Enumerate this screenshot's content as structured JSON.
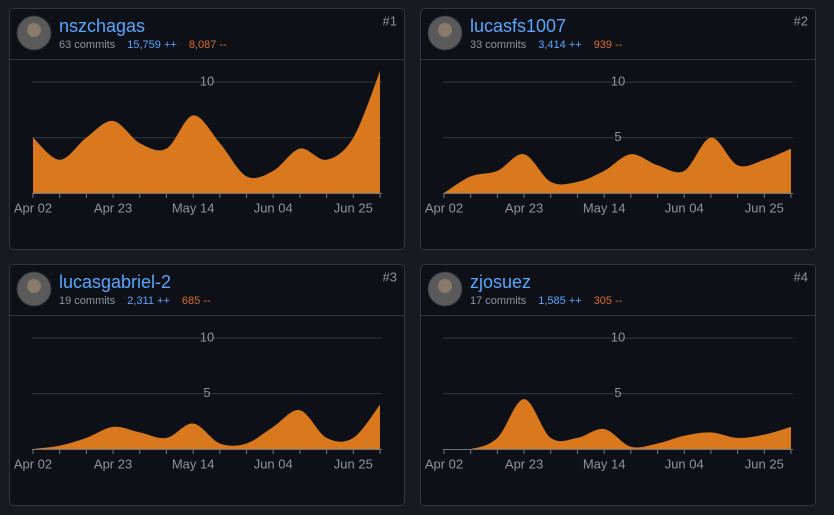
{
  "contributors": [
    {
      "name": "nszchagas",
      "rank": "#1",
      "commits": "63 commits",
      "additions": "15,759 ++",
      "deletions": "8,087 --",
      "chart": {
        "type": "area",
        "color": "#d9781c",
        "x": [
          "Apr 02",
          null,
          null,
          "Apr 23",
          null,
          null,
          "May 14",
          null,
          null,
          "Jun 04",
          null,
          null,
          "Jun 25",
          null
        ],
        "values": [
          5,
          3,
          5,
          6.5,
          4.5,
          4,
          7,
          4.5,
          1.5,
          2,
          4,
          3,
          5,
          11
        ],
        "ylim": [
          0,
          12
        ],
        "yticks": [
          5,
          10
        ],
        "grid": true
      }
    },
    {
      "name": "lucasfs1007",
      "rank": "#2",
      "commits": "33 commits",
      "additions": "3,414 ++",
      "deletions": "939 --",
      "chart": {
        "type": "area",
        "color": "#d9781c",
        "x": [
          "Apr 02",
          null,
          null,
          "Apr 23",
          null,
          null,
          "May 14",
          null,
          null,
          "Jun 04",
          null,
          null,
          "Jun 25",
          null
        ],
        "values": [
          0,
          1.5,
          2,
          3.5,
          1,
          1,
          2,
          3.5,
          2.5,
          2,
          5,
          2.5,
          3,
          4
        ],
        "ylim": [
          0,
          12
        ],
        "yticks": [
          5,
          10
        ],
        "grid": true
      }
    },
    {
      "name": "lucasgabriel-2",
      "rank": "#3",
      "commits": "19 commits",
      "additions": "2,311 ++",
      "deletions": "685 --",
      "chart": {
        "type": "area",
        "color": "#d9781c",
        "x": [
          "Apr 02",
          null,
          null,
          "Apr 23",
          null,
          null,
          "May 14",
          null,
          null,
          "Jun 04",
          null,
          null,
          "Jun 25",
          null
        ],
        "values": [
          0,
          0.3,
          1,
          2,
          1.5,
          1,
          2.3,
          0.5,
          0.5,
          2,
          3.5,
          1,
          1,
          4
        ],
        "ylim": [
          0,
          12
        ],
        "yticks": [
          5,
          10
        ],
        "grid": true
      }
    },
    {
      "name": "zjosuez",
      "rank": "#4",
      "commits": "17 commits",
      "additions": "1,585 ++",
      "deletions": "305 --",
      "chart": {
        "type": "area",
        "color": "#d9781c",
        "x": [
          "Apr 02",
          null,
          null,
          "Apr 23",
          null,
          null,
          "May 14",
          null,
          null,
          "Jun 04",
          null,
          null,
          "Jun 25",
          null
        ],
        "values": [
          0,
          0,
          1,
          4.5,
          1,
          1,
          1.8,
          0.2,
          0.5,
          1.2,
          1.5,
          1,
          1.3,
          2
        ],
        "ylim": [
          0,
          12
        ],
        "yticks": [
          5,
          10
        ],
        "grid": true
      }
    }
  ]
}
